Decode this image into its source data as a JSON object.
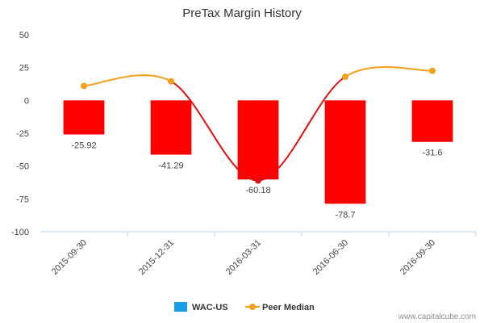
{
  "chart_data": {
    "type": "bar",
    "title": "PreTax Margin History",
    "xlabel": "",
    "ylabel": "",
    "categories": [
      "2015-09-30",
      "2015-12-31",
      "2016-03-31",
      "2016-06-30",
      "2016-09-30"
    ],
    "ylim": [
      -100,
      50
    ],
    "yticks": [
      50,
      25,
      0,
      -25,
      -50,
      -75,
      -100
    ],
    "grid": false,
    "legend_placement": "bottom-center",
    "series": [
      {
        "name": "WAC-US",
        "type": "bar",
        "values": [
          -25.92,
          -41.29,
          -60.18,
          -78.7,
          -31.6
        ],
        "labels": [
          "-25.92",
          "-41.29",
          "-60.18",
          "-78.7",
          "-31.6"
        ],
        "bar_color": "#ff0000",
        "legend_color": "#1a9ee6"
      },
      {
        "name": "Peer Median",
        "type": "line",
        "values": [
          11,
          14.5,
          -61,
          18,
          22.5
        ],
        "color": "#f5a01a",
        "segment_color": "#e01010"
      }
    ]
  },
  "credit": "www.capitalcube.com"
}
